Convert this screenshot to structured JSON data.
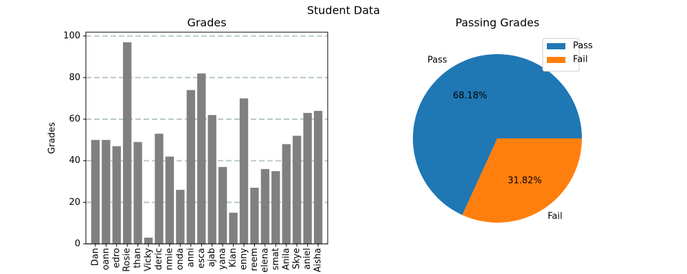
{
  "title": "Student Data",
  "chart_data": [
    {
      "type": "bar",
      "title": "Grades",
      "y_label": "Grades",
      "categories": [
        "Dan",
        "oann",
        "edro",
        "Rosie",
        "than",
        "Vicky",
        "deric",
        "nmie",
        "onda",
        "anni",
        "esca",
        "ajab",
        "yana",
        "Kian",
        "enny",
        "reem",
        "elena",
        "smat",
        "Anila",
        "Skye",
        "aniel",
        "Aisha"
      ],
      "values": [
        50,
        50,
        47,
        97,
        49,
        3,
        53,
        42,
        26,
        74,
        82,
        62,
        37,
        15,
        70,
        27,
        36,
        35,
        48,
        52,
        63,
        64
      ],
      "color": "#808080",
      "ylim": [
        0,
        101.85
      ],
      "yticks": [
        0,
        20,
        40,
        60,
        80,
        100
      ],
      "grid": true,
      "grid_color": "#b8c8c8"
    },
    {
      "type": "pie",
      "title": "Passing Grades",
      "categories": [
        "Pass",
        "Fail"
      ],
      "values": [
        68.18,
        31.82
      ],
      "value_labels": [
        "68.18%",
        "31.82%"
      ],
      "colors": [
        "#1f77b4",
        "#ff7f0e"
      ],
      "legend": "upper right"
    }
  ]
}
